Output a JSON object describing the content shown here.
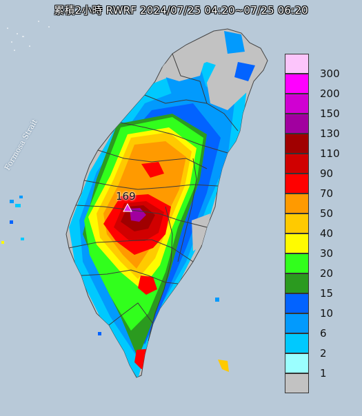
{
  "title": "累積2小時 RWRF 2024/07/25 04:20~07/25 06:20",
  "sea_label": "Formosa Strait",
  "max_marker": {
    "value": "169",
    "icon": "triangle-icon",
    "color": "#e030e0"
  },
  "legend": [
    {
      "label": "300",
      "color": "#fcc5fb"
    },
    {
      "label": "200",
      "color": "#ff00ff"
    },
    {
      "label": "150",
      "color": "#d000d2"
    },
    {
      "label": "130",
      "color": "#a1009f"
    },
    {
      "label": "110",
      "color": "#a00000"
    },
    {
      "label": "90",
      "color": "#d00000"
    },
    {
      "label": "70",
      "color": "#ff0000"
    },
    {
      "label": "50",
      "color": "#ff9a00"
    },
    {
      "label": "40",
      "color": "#ffca00"
    },
    {
      "label": "30",
      "color": "#fffb00"
    },
    {
      "label": "20",
      "color": "#31ff1c"
    },
    {
      "label": "15",
      "color": "#2b9a1f"
    },
    {
      "label": "10",
      "color": "#0263ff"
    },
    {
      "label": "6",
      "color": "#029afd"
    },
    {
      "label": "2",
      "color": "#00c9fe"
    },
    {
      "label": "1",
      "color": "#9bffff"
    },
    {
      "label": "",
      "color": "#c2c2c2"
    }
  ],
  "colors": {
    "sea": "#b8c9d8",
    "land_base": "#c2c2c2",
    "border": "#555555"
  }
}
